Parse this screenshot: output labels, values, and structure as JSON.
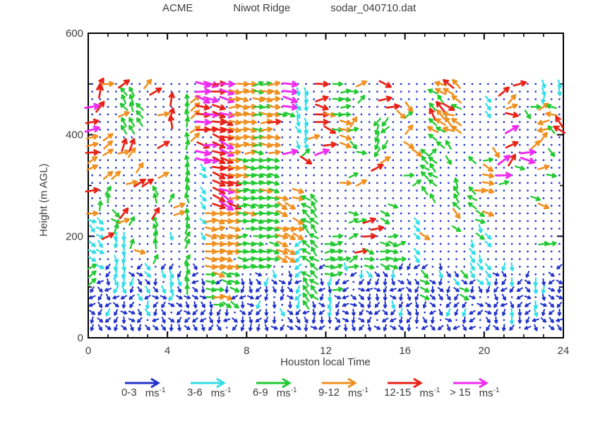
{
  "title": {
    "project": "ACME",
    "site": "Niwot Ridge",
    "file": "sodar_040710.dat"
  },
  "axes": {
    "x": {
      "label": "Houston local Time",
      "min": 0,
      "max": 24,
      "major_ticks": [
        0,
        4,
        8,
        12,
        16,
        20,
        24
      ],
      "minor_step": 1
    },
    "y": {
      "label": "Height (m AGL)",
      "min": 0,
      "max": 600,
      "major_ticks": [
        0,
        200,
        400,
        600
      ],
      "minor_step": 100
    }
  },
  "legend": {
    "unit": "ms",
    "sup": "-1"
  },
  "chart_data": {
    "type": "scatter",
    "subtype": "wind-vector-time-height-field",
    "title": "ACME  Niwot Ridge  sodar_040710.dat",
    "xlabel": "Houston local Time",
    "ylabel": "Height (m AGL)",
    "xlim": [
      0,
      24
    ],
    "ylim": [
      0,
      600
    ],
    "grid_on": false,
    "legend_position": "bottom",
    "speed_bins": [
      {
        "range": "0-3",
        "color": "#2233cc"
      },
      {
        "range": "3-6",
        "color": "#33dde8"
      },
      {
        "range": "6-9",
        "color": "#22c832"
      },
      {
        "range": "9-12",
        "color": "#ef8f1f"
      },
      {
        "range": "12-15",
        "color": "#e62218"
      },
      {
        "range": "> 15",
        "color": "#ee2bee"
      }
    ],
    "colors": [
      "#2233cc",
      "#33dde8",
      "#22c832",
      "#ef8f1f",
      "#e62218",
      "#ee2bee"
    ],
    "missing_dot_color": "#2233cc",
    "sample_grid": {
      "t_start": 0.2,
      "t_step": 0.4,
      "t_count": 60,
      "h_start": 20,
      "h_step": 15,
      "h_count": 33
    },
    "seed": 20040710,
    "field_patches": [
      [
        0,
        24,
        20,
        115,
        0,
        0.92,
        -165,
        -15
      ],
      [
        0,
        24,
        115,
        150,
        0,
        0.45,
        -160,
        -20
      ],
      [
        0,
        24,
        45,
        145,
        1,
        0.1,
        -130,
        -50
      ],
      [
        0,
        4.6,
        200,
        520,
        3,
        0.05,
        0,
        60
      ],
      [
        0,
        4.6,
        200,
        520,
        4,
        0.05,
        20,
        80
      ],
      [
        0,
        4.6,
        150,
        300,
        2,
        0.06,
        30,
        90
      ],
      [
        9.6,
        24,
        340,
        525,
        2,
        0.05,
        -60,
        60
      ],
      [
        9.6,
        24,
        340,
        525,
        3,
        0.05,
        -60,
        60
      ],
      [
        9.6,
        24,
        340,
        525,
        4,
        0.04,
        -40,
        40
      ],
      [
        9.6,
        24,
        340,
        525,
        5,
        0.02,
        -30,
        30
      ],
      [
        13,
        24,
        150,
        340,
        2,
        0.05,
        -40,
        40
      ],
      [
        13,
        24,
        150,
        340,
        3,
        0.04,
        -60,
        30
      ],
      [
        13.8,
        16,
        150,
        340,
        4,
        0.05,
        -20,
        30
      ],
      [
        0,
        0.3,
        270,
        465,
        5,
        0.55,
        -10,
        30
      ],
      [
        0,
        0.3,
        270,
        465,
        4,
        0.4,
        0,
        40
      ],
      [
        0,
        0.3,
        330,
        420,
        3,
        0.45,
        10,
        50
      ],
      [
        0.45,
        0.8,
        475,
        520,
        4,
        0.8,
        50,
        80
      ],
      [
        0,
        0.9,
        140,
        235,
        1,
        0.8,
        -60,
        -15
      ],
      [
        0,
        0.55,
        105,
        165,
        2,
        0.75,
        15,
        55
      ],
      [
        0.9,
        1.25,
        330,
        405,
        3,
        0.7,
        30,
        60
      ],
      [
        1.5,
        2.35,
        405,
        495,
        2,
        0.8,
        100,
        145
      ],
      [
        1.15,
        2.1,
        85,
        205,
        1,
        0.85,
        -110,
        -60
      ],
      [
        1.35,
        1.75,
        205,
        265,
        2,
        0.5,
        -60,
        -20
      ],
      [
        2.55,
        3.0,
        415,
        485,
        2,
        0.75,
        110,
        150
      ],
      [
        2.6,
        2.95,
        165,
        215,
        3,
        0.65,
        -25,
        10
      ],
      [
        3.15,
        3.75,
        185,
        305,
        2,
        0.8,
        85,
        130
      ],
      [
        2.85,
        3.35,
        55,
        165,
        1,
        0.6,
        -95,
        -40
      ],
      [
        4.05,
        4.45,
        415,
        495,
        4,
        0.75,
        70,
        105
      ],
      [
        4.25,
        4.65,
        215,
        265,
        3,
        0.6,
        0,
        40
      ],
      [
        3.85,
        4.3,
        95,
        205,
        1,
        0.5,
        -85,
        -30
      ],
      [
        4.65,
        5.35,
        95,
        265,
        2,
        0.85,
        55,
        100
      ],
      [
        4.75,
        5.25,
        265,
        500,
        2,
        0.8,
        70,
        110
      ],
      [
        5.3,
        5.75,
        395,
        485,
        3,
        0.75,
        20,
        50
      ],
      [
        5.45,
        5.95,
        195,
        355,
        1,
        0.8,
        -70,
        -30
      ],
      [
        5.55,
        6.05,
        425,
        495,
        1,
        0.55,
        -60,
        -20
      ],
      [
        5.5,
        6.45,
        345,
        505,
        5,
        0.55,
        -30,
        5
      ],
      [
        5.5,
        7.35,
        375,
        505,
        4,
        0.5,
        -25,
        10
      ],
      [
        6.15,
        7.45,
        135,
        255,
        3,
        0.85,
        -25,
        10
      ],
      [
        6.4,
        7.65,
        250,
        455,
        4,
        0.85,
        -30,
        -5
      ],
      [
        6.85,
        7.7,
        255,
        435,
        5,
        0.5,
        -40,
        -10
      ],
      [
        6.85,
        7.35,
        435,
        505,
        5,
        0.75,
        -25,
        5
      ],
      [
        7.4,
        9.75,
        245,
        505,
        3,
        0.88,
        -20,
        15
      ],
      [
        7.7,
        9.55,
        135,
        355,
        2,
        0.88,
        -25,
        15
      ],
      [
        8.55,
        9.35,
        355,
        505,
        2,
        0.45,
        -15,
        25
      ],
      [
        9.3,
        9.8,
        330,
        485,
        4,
        0.4,
        -25,
        10
      ],
      [
        5.95,
        7.55,
        55,
        135,
        2,
        0.75,
        -40,
        5
      ],
      [
        6.25,
        7.25,
        75,
        150,
        3,
        0.5,
        -30,
        5
      ],
      [
        9.85,
        10.45,
        455,
        510,
        5,
        0.7,
        -35,
        -5
      ],
      [
        9.8,
        10.9,
        145,
        305,
        3,
        0.55,
        -40,
        -5
      ],
      [
        10.5,
        11.05,
        375,
        490,
        1,
        0.8,
        -85,
        -50
      ],
      [
        10.45,
        10.95,
        55,
        205,
        1,
        0.65,
        -145,
        -95
      ],
      [
        10.85,
        11.65,
        55,
        285,
        2,
        0.88,
        115,
        160
      ],
      [
        11.35,
        11.7,
        395,
        430,
        3,
        0.5,
        -20,
        20
      ],
      [
        11.6,
        12.15,
        385,
        460,
        4,
        0.6,
        -25,
        10
      ],
      [
        11.7,
        12.05,
        465,
        520,
        4,
        0.5,
        -15,
        20
      ],
      [
        11.95,
        12.55,
        45,
        140,
        1,
        0.7,
        -125,
        -75
      ],
      [
        12.2,
        12.65,
        95,
        215,
        2,
        0.8,
        -15,
        25
      ],
      [
        12.25,
        12.5,
        365,
        405,
        5,
        0.5,
        -20,
        10
      ],
      [
        12.4,
        12.65,
        465,
        515,
        2,
        0.6,
        -10,
        25
      ],
      [
        12.6,
        13.1,
        375,
        520,
        2,
        0.8,
        -15,
        20
      ],
      [
        12.85,
        13.25,
        355,
        440,
        3,
        0.5,
        -30,
        10
      ],
      [
        13.3,
        13.75,
        115,
        245,
        2,
        0.8,
        0,
        45
      ],
      [
        13.85,
        14.15,
        170,
        230,
        4,
        0.6,
        0,
        35
      ],
      [
        13.95,
        14.5,
        85,
        150,
        1,
        0.65,
        -70,
        -25
      ],
      [
        14.0,
        14.5,
        140,
        205,
        2,
        0.5,
        -40,
        0
      ],
      [
        14.5,
        15.05,
        360,
        430,
        2,
        0.7,
        -145,
        -105
      ],
      [
        15.05,
        15.35,
        365,
        435,
        3,
        0.55,
        -140,
        -100
      ],
      [
        14.8,
        15.45,
        130,
        265,
        2,
        0.6,
        -35,
        10
      ],
      [
        15.25,
        15.6,
        55,
        135,
        1,
        0.6,
        -110,
        -60
      ],
      [
        16.35,
        16.6,
        105,
        140,
        3,
        0.45,
        -40,
        0
      ],
      [
        16.4,
        16.95,
        115,
        235,
        1,
        0.75,
        -60,
        -15
      ],
      [
        16.9,
        17.2,
        75,
        130,
        2,
        0.55,
        -50,
        -10
      ],
      [
        16.85,
        17.5,
        265,
        370,
        2,
        0.7,
        115,
        160
      ],
      [
        17.25,
        18.9,
        380,
        505,
        2,
        0.55,
        120,
        170
      ],
      [
        17.3,
        18.85,
        385,
        505,
        3,
        0.5,
        120,
        170
      ],
      [
        17.3,
        18.9,
        440,
        512,
        4,
        0.15,
        110,
        150
      ],
      [
        18.35,
        18.95,
        250,
        360,
        2,
        0.75,
        100,
        150
      ],
      [
        19.15,
        19.8,
        250,
        360,
        2,
        0.8,
        110,
        155
      ],
      [
        19.9,
        20.5,
        240,
        350,
        3,
        0.8,
        -40,
        -5
      ],
      [
        19.4,
        20.6,
        95,
        225,
        1,
        0.55,
        -85,
        -35
      ],
      [
        19.55,
        20.1,
        170,
        250,
        2,
        0.6,
        -45,
        -10
      ],
      [
        18.85,
        19.35,
        55,
        130,
        2,
        0.45,
        -60,
        -15
      ],
      [
        20.15,
        20.55,
        435,
        480,
        1,
        0.5,
        -60,
        -20
      ],
      [
        20.75,
        21.1,
        320,
        365,
        5,
        0.45,
        0,
        40
      ],
      [
        21.05,
        21.55,
        415,
        485,
        3,
        0.65,
        25,
        60
      ],
      [
        21.15,
        21.5,
        345,
        395,
        4,
        0.45,
        20,
        60
      ],
      [
        21.3,
        21.7,
        35,
        115,
        1,
        0.7,
        -105,
        -70
      ],
      [
        22.4,
        22.8,
        35,
        115,
        1,
        0.7,
        -105,
        -70
      ],
      [
        22.65,
        23.15,
        450,
        518,
        1,
        0.85,
        -105,
        -70
      ],
      [
        23.15,
        23.6,
        405,
        470,
        2,
        0.55,
        130,
        170
      ],
      [
        22.9,
        24,
        390,
        448,
        3,
        0.5,
        150,
        200
      ],
      [
        23.3,
        23.9,
        395,
        445,
        4,
        0.35,
        120,
        160
      ],
      [
        23.85,
        24,
        195,
        225,
        2,
        0.7,
        -20,
        20
      ],
      [
        23.6,
        24,
        455,
        515,
        1,
        0.5,
        -100,
        -70
      ]
    ]
  }
}
